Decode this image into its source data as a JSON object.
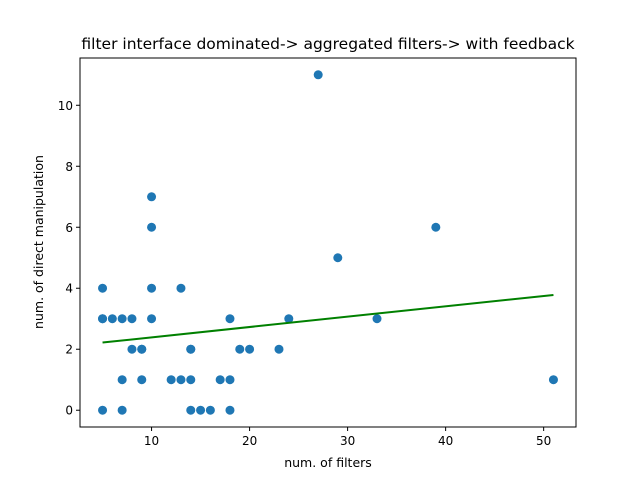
{
  "chart_data": {
    "type": "scatter",
    "title": "filter interface dominated-> aggregated filters-> with feedback",
    "xlabel": "num. of filters",
    "ylabel": "num. of direct manipulation",
    "xlim": [
      2.7,
      53.3
    ],
    "ylim": [
      -0.55,
      11.55
    ],
    "xticks": [
      10,
      20,
      30,
      40,
      50
    ],
    "yticks": [
      0,
      2,
      4,
      6,
      8,
      10
    ],
    "grid": false,
    "point_color": "#1f77b4",
    "line_color": "#008000",
    "points": [
      {
        "x": 5,
        "y": 4
      },
      {
        "x": 5,
        "y": 3
      },
      {
        "x": 5,
        "y": 3
      },
      {
        "x": 5,
        "y": 0
      },
      {
        "x": 6,
        "y": 3
      },
      {
        "x": 7,
        "y": 3
      },
      {
        "x": 7,
        "y": 1
      },
      {
        "x": 7,
        "y": 0
      },
      {
        "x": 8,
        "y": 3
      },
      {
        "x": 8,
        "y": 2
      },
      {
        "x": 9,
        "y": 2
      },
      {
        "x": 9,
        "y": 2
      },
      {
        "x": 9,
        "y": 1
      },
      {
        "x": 10,
        "y": 7
      },
      {
        "x": 10,
        "y": 6
      },
      {
        "x": 10,
        "y": 4
      },
      {
        "x": 10,
        "y": 3
      },
      {
        "x": 12,
        "y": 1
      },
      {
        "x": 13,
        "y": 4
      },
      {
        "x": 13,
        "y": 1
      },
      {
        "x": 14,
        "y": 2
      },
      {
        "x": 14,
        "y": 2
      },
      {
        "x": 14,
        "y": 1
      },
      {
        "x": 14,
        "y": 0
      },
      {
        "x": 15,
        "y": 0
      },
      {
        "x": 16,
        "y": 0
      },
      {
        "x": 17,
        "y": 1
      },
      {
        "x": 18,
        "y": 3
      },
      {
        "x": 18,
        "y": 1
      },
      {
        "x": 18,
        "y": 0
      },
      {
        "x": 19,
        "y": 2
      },
      {
        "x": 20,
        "y": 2
      },
      {
        "x": 23,
        "y": 2
      },
      {
        "x": 24,
        "y": 3
      },
      {
        "x": 27,
        "y": 11
      },
      {
        "x": 29,
        "y": 5
      },
      {
        "x": 33,
        "y": 3
      },
      {
        "x": 39,
        "y": 6
      },
      {
        "x": 51,
        "y": 1
      }
    ],
    "trend_line": {
      "x": [
        5,
        51
      ],
      "y": [
        2.22,
        3.78
      ]
    }
  }
}
